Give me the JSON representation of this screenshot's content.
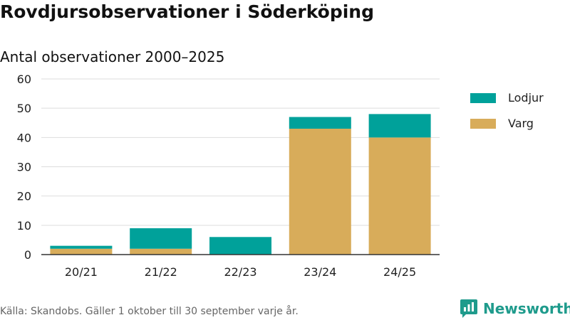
{
  "header": {
    "title": "Rovdjursobservationer i Söderköping",
    "subtitle": "Antal observationer 2000–2025"
  },
  "legend": [
    {
      "label": "Lodjur",
      "color": "#00a19a"
    },
    {
      "label": "Varg",
      "color": "#d8ac5a"
    }
  ],
  "footer": {
    "source": "Källa: Skandobs. Gäller 1 oktober till 30 september varje år.",
    "brand": "Newsworthy",
    "brand_icon": "newsworthy-logo-icon"
  },
  "chart_data": {
    "type": "bar",
    "stacked": true,
    "title": "Rovdjursobservationer i Söderköping",
    "subtitle": "Antal observationer 2000–2025",
    "xlabel": "",
    "ylabel": "",
    "categories": [
      "20/21",
      "21/22",
      "22/23",
      "23/24",
      "24/25"
    ],
    "series": [
      {
        "name": "Varg",
        "color": "#d8ac5a",
        "values": [
          2,
          2,
          0,
          43,
          40
        ]
      },
      {
        "name": "Lodjur",
        "color": "#00a19a",
        "values": [
          1,
          7,
          6,
          4,
          8
        ]
      }
    ],
    "ylim": [
      0,
      60
    ],
    "yticks": [
      0,
      10,
      20,
      30,
      40,
      50,
      60
    ],
    "grid": true,
    "legend_position": "right"
  }
}
